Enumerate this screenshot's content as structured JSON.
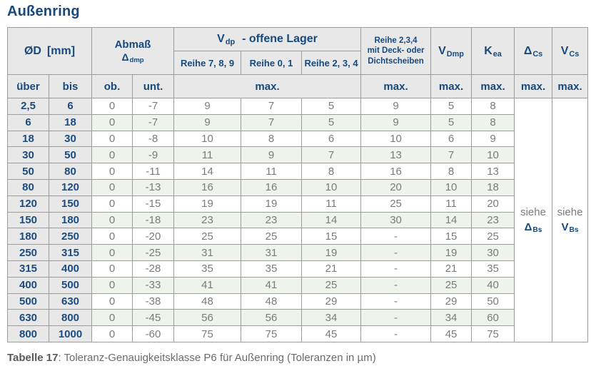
{
  "title": "Außenring",
  "colors": {
    "accent_blue": "#17497d",
    "label_blue": "#1c4b80",
    "header_gray_bg": "#e8e8e8",
    "row_green_bg": "#eef4e9",
    "data_text_gray": "#7b7b7b",
    "border_gray": "#9c9c9c"
  },
  "table": {
    "header": {
      "od": {
        "symbol": "ØD",
        "unit": "[mm]"
      },
      "abmass": {
        "line1": "Abmaß",
        "base": "Δ",
        "sub": "dmp"
      },
      "vdp": {
        "base": "V",
        "sub": "dp",
        "suffix": "- offene Lager"
      },
      "reihe789": "Reihe 7, 8, 9",
      "reihe01": "Reihe 0, 1",
      "reihe234": "Reihe 2, 3, 4",
      "sealed": {
        "line1": "Reihe 2,3,4",
        "line2": "mit Deck- oder",
        "line3": "Dichtscheiben"
      },
      "vdmp": {
        "base": "V",
        "sub": "Dmp"
      },
      "kea": {
        "base": "K",
        "sub": "ea"
      },
      "dcs": {
        "base": "Δ",
        "sub": "Cs"
      },
      "vcs": {
        "base": "V",
        "sub": "Cs"
      },
      "ueber": "über",
      "bis": "bis",
      "ob": "ob.",
      "unt": "unt.",
      "max": "max."
    },
    "see_dbs": {
      "prefix": "siehe",
      "base": "Δ",
      "sub": "Bs"
    },
    "see_vbs": {
      "prefix": "siehe",
      "base": "V",
      "sub": "Bs"
    },
    "rows": [
      {
        "ueber": "2,5",
        "bis": "6",
        "ob": "0",
        "unt": "-7",
        "r789": "9",
        "r01": "7",
        "r234": "5",
        "sealed": "9",
        "vdmp": "5",
        "kea": "8"
      },
      {
        "ueber": "6",
        "bis": "18",
        "ob": "0",
        "unt": "-7",
        "r789": "9",
        "r01": "7",
        "r234": "5",
        "sealed": "9",
        "vdmp": "5",
        "kea": "8"
      },
      {
        "ueber": "18",
        "bis": "30",
        "ob": "0",
        "unt": "-8",
        "r789": "10",
        "r01": "8",
        "r234": "6",
        "sealed": "10",
        "vdmp": "6",
        "kea": "9"
      },
      {
        "ueber": "30",
        "bis": "50",
        "ob": "0",
        "unt": "-9",
        "r789": "11",
        "r01": "9",
        "r234": "7",
        "sealed": "13",
        "vdmp": "7",
        "kea": "10"
      },
      {
        "ueber": "50",
        "bis": "80",
        "ob": "0",
        "unt": "-11",
        "r789": "14",
        "r01": "11",
        "r234": "8",
        "sealed": "16",
        "vdmp": "8",
        "kea": "13"
      },
      {
        "ueber": "80",
        "bis": "120",
        "ob": "0",
        "unt": "-13",
        "r789": "16",
        "r01": "16",
        "r234": "10",
        "sealed": "20",
        "vdmp": "10",
        "kea": "18"
      },
      {
        "ueber": "120",
        "bis": "150",
        "ob": "0",
        "unt": "-15",
        "r789": "19",
        "r01": "19",
        "r234": "11",
        "sealed": "25",
        "vdmp": "11",
        "kea": "20"
      },
      {
        "ueber": "150",
        "bis": "180",
        "ob": "0",
        "unt": "-18",
        "r789": "23",
        "r01": "23",
        "r234": "14",
        "sealed": "30",
        "vdmp": "14",
        "kea": "23"
      },
      {
        "ueber": "180",
        "bis": "250",
        "ob": "0",
        "unt": "-20",
        "r789": "25",
        "r01": "25",
        "r234": "15",
        "sealed": "-",
        "vdmp": "15",
        "kea": "25"
      },
      {
        "ueber": "250",
        "bis": "315",
        "ob": "0",
        "unt": "-25",
        "r789": "31",
        "r01": "31",
        "r234": "19",
        "sealed": "-",
        "vdmp": "19",
        "kea": "30"
      },
      {
        "ueber": "315",
        "bis": "400",
        "ob": "0",
        "unt": "-28",
        "r789": "35",
        "r01": "35",
        "r234": "21",
        "sealed": "-",
        "vdmp": "21",
        "kea": "35"
      },
      {
        "ueber": "400",
        "bis": "500",
        "ob": "0",
        "unt": "-33",
        "r789": "41",
        "r01": "41",
        "r234": "25",
        "sealed": "-",
        "vdmp": "25",
        "kea": "40"
      },
      {
        "ueber": "500",
        "bis": "630",
        "ob": "0",
        "unt": "-38",
        "r789": "48",
        "r01": "48",
        "r234": "29",
        "sealed": "-",
        "vdmp": "29",
        "kea": "50"
      },
      {
        "ueber": "630",
        "bis": "800",
        "ob": "0",
        "unt": "-45",
        "r789": "56",
        "r01": "56",
        "r234": "34",
        "sealed": "-",
        "vdmp": "34",
        "kea": "60"
      },
      {
        "ueber": "800",
        "bis": "1000",
        "ob": "0",
        "unt": "-60",
        "r789": "75",
        "r01": "75",
        "r234": "45",
        "sealed": "-",
        "vdmp": "45",
        "kea": "75"
      }
    ]
  },
  "caption": {
    "bold": "Tabelle 17",
    "rest": ": Toleranz-Genauigkeitsklasse P6 für Außenring (Toleranzen in µm)"
  }
}
